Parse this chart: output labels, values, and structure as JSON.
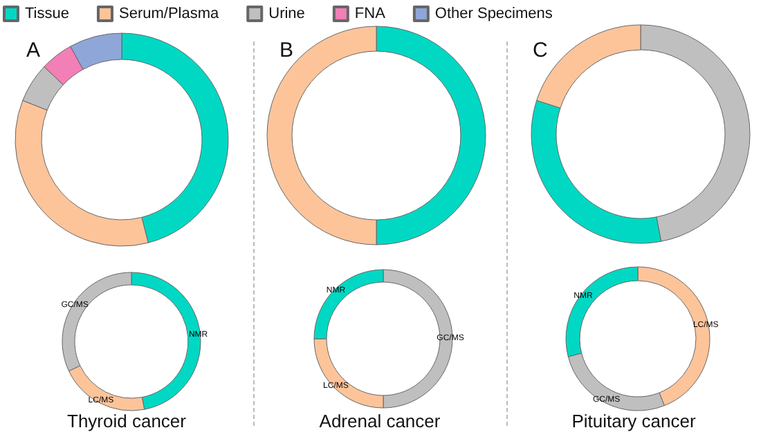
{
  "chart_data": [
    {
      "type": "donut",
      "title": "A",
      "categories": [
        "Tissue",
        "Serum/Plasma",
        "Urine",
        "FNA",
        "Other Specimens"
      ],
      "values": [
        46,
        35,
        6,
        5,
        8
      ],
      "colors": [
        "#00d8c4",
        "#fdc49a",
        "#bfbfbf",
        "#f27fb6",
        "#8fa6d9"
      ],
      "legend": "top"
    },
    {
      "type": "donut",
      "title": "B",
      "categories": [
        null,
        null
      ],
      "values": [
        50,
        50
      ],
      "colors": [
        "#00d8c4",
        "#fdc49a"
      ]
    },
    {
      "type": "donut",
      "title": "C",
      "categories": [
        null,
        null,
        null
      ],
      "values": [
        47,
        33,
        20
      ],
      "colors": [
        "#bfbfbf",
        "#00d8c4",
        "#fdc49a"
      ]
    },
    {
      "type": "donut",
      "categories": [
        "NMR",
        "LC/MS",
        "GC/MS"
      ],
      "values": [
        47,
        21,
        32
      ],
      "colors": [
        "#00d8c4",
        "#fdc49a",
        "#bfbfbf"
      ],
      "annotations": [
        "Thyroid cancer"
      ]
    },
    {
      "type": "donut",
      "categories": [
        "GC/MS",
        "LC/MS",
        "NMR"
      ],
      "values": [
        50,
        25,
        25
      ],
      "colors": [
        "#bfbfbf",
        "#fdc49a",
        "#00d8c4"
      ],
      "annotations": [
        "Adrenal cancer"
      ]
    },
    {
      "type": "donut",
      "categories": [
        "LC/MS",
        "GC/MS",
        "NMR"
      ],
      "values": [
        44,
        27,
        29
      ],
      "colors": [
        "#fdc49a",
        "#bfbfbf",
        "#00d8c4"
      ],
      "annotations": [
        "Pituitary cancer"
      ]
    }
  ]
}
